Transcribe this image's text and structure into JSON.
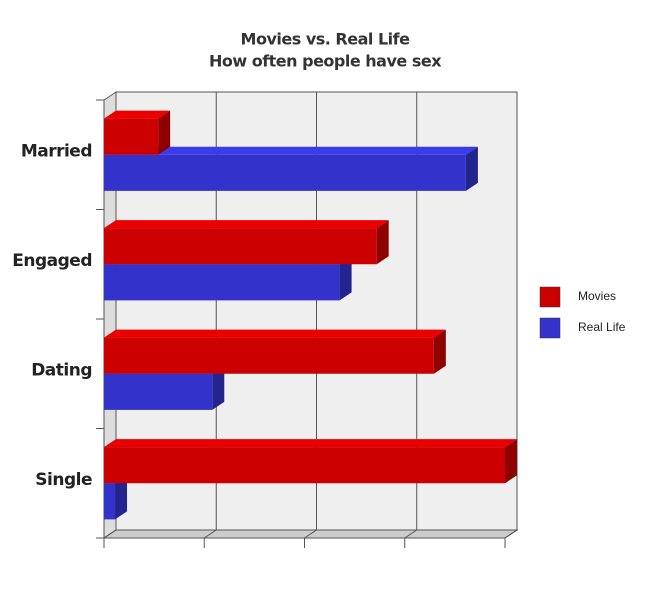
{
  "chart_data": {
    "type": "bar",
    "orientation": "horizontal",
    "title": "Movies vs. Real Life",
    "subtitle": "How often people have sex",
    "categories": [
      "Married",
      "Engaged",
      "Dating",
      "Single"
    ],
    "series": [
      {
        "name": "Movies",
        "color": "#cc0000",
        "values": [
          0.54,
          2.72,
          3.29,
          4.0
        ]
      },
      {
        "name": "Real Life",
        "color": "#3333cc",
        "values": [
          3.61,
          2.35,
          1.08,
          0.11
        ]
      }
    ],
    "xlim": [
      0,
      4
    ],
    "xticks": [
      0,
      1,
      2,
      3,
      4
    ],
    "show_tick_labels": false,
    "grid": true,
    "legend": "right"
  }
}
